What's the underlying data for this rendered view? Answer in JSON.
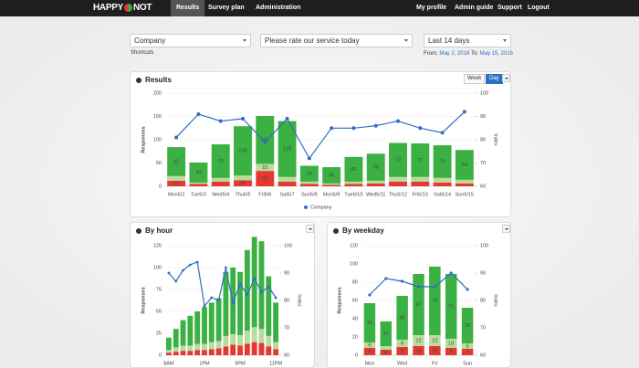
{
  "nav": {
    "logo_left": "HAPPY",
    "logo_right": "NOT",
    "tabs": [
      "Results",
      "Survey plan",
      "Administration"
    ],
    "links": [
      "My profile",
      "Admin guide",
      "Support",
      "Logout"
    ]
  },
  "filters": {
    "selects": [
      "Company",
      "Please rate our service today",
      "Last 14 days"
    ],
    "shortcuts": "Shortcuts",
    "from_label": "From:",
    "from_date": "May 2, 2016",
    "to_label": "To:",
    "to_date": "May 15, 2016"
  },
  "results_toggle": [
    "Week",
    "Day"
  ],
  "chart_data": [
    {
      "type": "bar",
      "title": "Results",
      "stacked": true,
      "categories": [
        "Mon5/2",
        "Tue5/3",
        "Wed5/4",
        "Thu5/5",
        "Fri5/6",
        "Sat5/7",
        "Sun5/8",
        "Mon5/9",
        "Tue5/10",
        "Wed5/11",
        "Thu5/12",
        "Fri5/13",
        "Sat5/14",
        "Sun5/15"
      ],
      "y_label": "Responses",
      "y2_label": "Index",
      "ylim": [
        0,
        200
      ],
      "yticks": [
        0,
        50,
        100,
        150,
        200
      ],
      "y2lim": [
        60,
        100
      ],
      "y2ticks": [
        60,
        70,
        80,
        90,
        100
      ],
      "grid": true,
      "legend": "bottom",
      "data_labels": true,
      "series": [
        {
          "color": "#e5392f",
          "values": [
            12,
            5,
            10,
            13,
            33,
            10,
            5,
            3,
            5,
            6,
            10,
            10,
            8,
            6
          ]
        },
        {
          "color": "#b7dc9c",
          "values": [
            10,
            3,
            8,
            10,
            15,
            10,
            5,
            3,
            5,
            6,
            10,
            10,
            10,
            8
          ]
        },
        {
          "color": "#3bb143",
          "values": [
            62,
            43,
            72,
            106,
            103,
            120,
            34,
            35,
            53,
            58,
            73,
            72,
            70,
            64
          ]
        },
        {
          "name": "Company",
          "type": "line",
          "axis": "y2",
          "color": "#2c6fc2",
          "values": [
            81,
            91,
            88,
            89,
            79,
            89,
            72,
            85,
            85,
            86,
            88,
            85,
            83,
            92
          ]
        }
      ]
    },
    {
      "type": "bar",
      "title": "By hour",
      "stacked": true,
      "categories": [
        "8AM",
        null,
        null,
        null,
        null,
        "1PM",
        null,
        null,
        null,
        null,
        "6PM",
        null,
        null,
        null,
        null,
        "11PM"
      ],
      "y_label": "Responses",
      "y2_label": "Index",
      "ylim": [
        0,
        125
      ],
      "yticks": [
        0,
        25,
        50,
        75,
        100,
        125
      ],
      "y2lim": [
        60,
        100
      ],
      "y2ticks": [
        60,
        70,
        80,
        90,
        100
      ],
      "grid": true,
      "series": [
        {
          "color": "#e5392f",
          "values": [
            3,
            4,
            5,
            5,
            6,
            6,
            7,
            8,
            10,
            12,
            11,
            13,
            15,
            14,
            10,
            7
          ]
        },
        {
          "color": "#b7dc9c",
          "values": [
            3,
            5,
            6,
            6,
            7,
            7,
            8,
            8,
            12,
            12,
            12,
            15,
            17,
            16,
            12,
            8
          ]
        },
        {
          "color": "#3bb143",
          "values": [
            14,
            21,
            29,
            34,
            37,
            42,
            45,
            49,
            73,
            76,
            72,
            92,
            103,
            100,
            68,
            45
          ]
        },
        {
          "type": "line",
          "axis": "y2",
          "color": "#2c6fc2",
          "values": [
            90,
            87,
            91,
            93,
            94,
            78,
            81,
            80,
            92,
            79,
            86,
            82,
            88,
            83,
            85,
            81
          ]
        }
      ]
    },
    {
      "type": "bar",
      "title": "By weekday",
      "stacked": true,
      "categories": [
        "Mon",
        null,
        "Wed",
        null,
        "Fri",
        null,
        "Sun"
      ],
      "y_label": "Responses",
      "y2_label": "Index",
      "ylim": [
        0,
        120
      ],
      "yticks": [
        0,
        20,
        40,
        60,
        80,
        100,
        120
      ],
      "y2lim": [
        60,
        100
      ],
      "y2ticks": [
        60,
        70,
        80,
        90,
        100
      ],
      "grid": true,
      "data_labels": true,
      "series": [
        {
          "color": "#e5392f",
          "values": [
            8,
            6,
            9,
            10,
            10,
            8,
            7
          ]
        },
        {
          "color": "#b7dc9c",
          "values": [
            6,
            4,
            8,
            12,
            12,
            10,
            6
          ]
        },
        {
          "color": "#3bb143",
          "values": [
            43,
            27,
            48,
            67,
            75,
            71,
            39
          ]
        },
        {
          "type": "line",
          "axis": "y2",
          "color": "#2c6fc2",
          "values": [
            82,
            88,
            87,
            85,
            85,
            90,
            84
          ]
        }
      ]
    }
  ]
}
